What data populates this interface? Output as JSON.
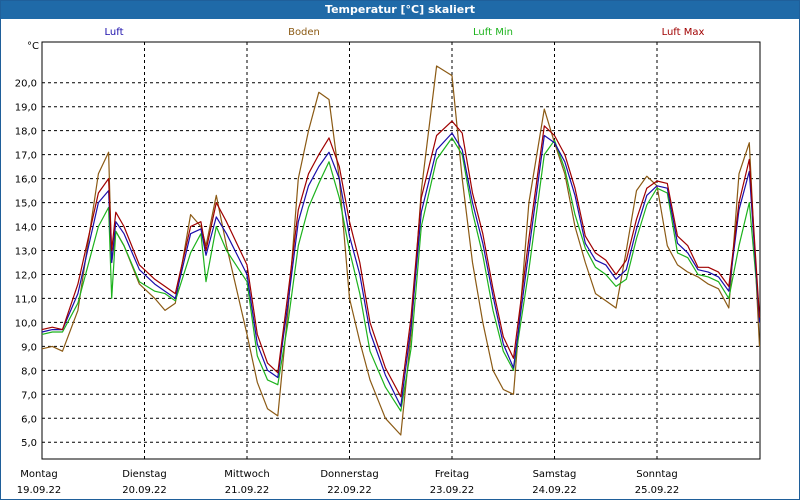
{
  "window": {
    "title": "Temperatur [°C] skaliert"
  },
  "legend": [
    {
      "label": "Luft",
      "color": "#1a0dab"
    },
    {
      "label": "Boden",
      "color": "#8b5a14"
    },
    {
      "label": "Luft Min",
      "color": "#1db31d"
    },
    {
      "label": "Luft Max",
      "color": "#a00000"
    }
  ],
  "chart_data": {
    "type": "line",
    "title": "Temperatur [°C] skaliert",
    "ylabel": "°C",
    "ylim": [
      4.3,
      21.7
    ],
    "yticks": [
      "5,0",
      "6,0",
      "7,0",
      "8,0",
      "9,0",
      "10,0",
      "11,0",
      "12,0",
      "13,0",
      "14,0",
      "15,0",
      "16,0",
      "17,0",
      "18,0",
      "19,0",
      "20,0"
    ],
    "xlim": [
      0,
      7
    ],
    "x_unit": "days since 19.09.22 00:00",
    "days": [
      {
        "name": "Montag",
        "date": "19.09.22"
      },
      {
        "name": "Dienstag",
        "date": "20.09.22"
      },
      {
        "name": "Mittwoch",
        "date": "21.09.22"
      },
      {
        "name": "Donnerstag",
        "date": "22.09.22"
      },
      {
        "name": "Freitag",
        "date": "23.09.22"
      },
      {
        "name": "Samstag",
        "date": "24.09.22"
      },
      {
        "name": "Sonntag",
        "date": "25.09.22"
      }
    ],
    "series": [
      {
        "name": "Luft",
        "color": "#1a0dab",
        "x": [
          0,
          0.1,
          0.2,
          0.35,
          0.55,
          0.65,
          0.68,
          0.72,
          0.8,
          0.95,
          1.1,
          1.2,
          1.3,
          1.45,
          1.55,
          1.6,
          1.7,
          1.8,
          2.0,
          2.1,
          2.2,
          2.3,
          2.4,
          2.5,
          2.6,
          2.7,
          2.8,
          2.9,
          3.0,
          3.1,
          3.2,
          3.35,
          3.5,
          3.6,
          3.7,
          3.85,
          4.0,
          4.1,
          4.2,
          4.3,
          4.4,
          4.5,
          4.6,
          4.75,
          4.9,
          5.0,
          5.1,
          5.2,
          5.3,
          5.4,
          5.5,
          5.6,
          5.7,
          5.8,
          5.9,
          6.0,
          6.1,
          6.2,
          6.3,
          6.4,
          6.5,
          6.6,
          6.7,
          6.8,
          6.9,
          7.0
        ],
        "y": [
          9.6,
          9.7,
          9.7,
          11.2,
          15.0,
          15.5,
          12.5,
          14.2,
          13.7,
          12.2,
          11.6,
          11.3,
          11.0,
          13.7,
          13.9,
          12.8,
          14.4,
          13.7,
          12.0,
          9.1,
          8.0,
          7.7,
          10.8,
          14.2,
          15.7,
          16.5,
          17.1,
          16.0,
          13.6,
          12.0,
          9.6,
          7.8,
          6.5,
          9.8,
          14.6,
          17.2,
          17.9,
          17.2,
          15.0,
          13.3,
          11.1,
          9.1,
          8.1,
          13.0,
          17.8,
          17.5,
          16.7,
          15.3,
          13.3,
          12.6,
          12.4,
          11.8,
          12.2,
          13.9,
          15.3,
          15.7,
          15.6,
          13.3,
          12.9,
          12.2,
          12.1,
          11.9,
          11.3,
          14.7,
          16.3,
          10.0
        ]
      },
      {
        "name": "Boden",
        "color": "#8b5a14",
        "x": [
          0,
          0.1,
          0.2,
          0.35,
          0.55,
          0.65,
          0.68,
          0.72,
          0.8,
          0.95,
          1.1,
          1.2,
          1.3,
          1.45,
          1.55,
          1.6,
          1.7,
          1.8,
          2.0,
          2.1,
          2.2,
          2.3,
          2.4,
          2.5,
          2.6,
          2.7,
          2.8,
          2.9,
          3.0,
          3.1,
          3.2,
          3.35,
          3.5,
          3.6,
          3.7,
          3.85,
          4.0,
          4.1,
          4.2,
          4.3,
          4.4,
          4.5,
          4.6,
          4.75,
          4.9,
          5.0,
          5.1,
          5.2,
          5.3,
          5.4,
          5.5,
          5.6,
          5.7,
          5.8,
          5.9,
          6.0,
          6.1,
          6.2,
          6.3,
          6.4,
          6.5,
          6.6,
          6.7,
          6.8,
          6.9,
          7.0
        ],
        "y": [
          8.9,
          9.0,
          8.8,
          10.5,
          16.2,
          17.1,
          12.5,
          13.8,
          13.2,
          11.6,
          11.0,
          10.5,
          10.8,
          14.5,
          14.0,
          13.2,
          15.3,
          13.2,
          9.5,
          7.5,
          6.4,
          6.1,
          10.5,
          16.0,
          18.0,
          19.6,
          19.3,
          16.0,
          11.0,
          9.2,
          7.6,
          6.0,
          5.3,
          9.5,
          15.5,
          20.7,
          20.3,
          16.0,
          12.5,
          10.0,
          8.0,
          7.2,
          7.0,
          15.0,
          18.9,
          17.5,
          16.2,
          14.0,
          12.5,
          11.2,
          10.9,
          10.6,
          13.0,
          15.5,
          16.1,
          15.7,
          13.2,
          12.4,
          12.1,
          11.9,
          11.6,
          11.4,
          10.6,
          16.2,
          17.5,
          9.0
        ]
      },
      {
        "name": "Luft Min",
        "color": "#1db31d",
        "x": [
          0,
          0.1,
          0.2,
          0.35,
          0.55,
          0.65,
          0.68,
          0.72,
          0.8,
          0.95,
          1.1,
          1.2,
          1.3,
          1.45,
          1.55,
          1.6,
          1.7,
          1.8,
          2.0,
          2.1,
          2.2,
          2.3,
          2.4,
          2.5,
          2.6,
          2.7,
          2.8,
          2.9,
          3.0,
          3.1,
          3.2,
          3.35,
          3.5,
          3.6,
          3.7,
          3.85,
          4.0,
          4.1,
          4.2,
          4.3,
          4.4,
          4.5,
          4.6,
          4.75,
          4.9,
          5.0,
          5.1,
          5.2,
          5.3,
          5.4,
          5.5,
          5.6,
          5.7,
          5.8,
          5.9,
          6.0,
          6.1,
          6.2,
          6.3,
          6.4,
          6.5,
          6.6,
          6.7,
          6.8,
          6.9,
          7.0
        ],
        "y": [
          9.5,
          9.6,
          9.6,
          10.8,
          14.0,
          14.8,
          11.0,
          13.8,
          13.2,
          11.7,
          11.3,
          11.2,
          10.9,
          12.9,
          13.7,
          11.7,
          14.0,
          13.0,
          11.7,
          8.6,
          7.6,
          7.4,
          10.0,
          13.2,
          14.8,
          15.8,
          16.7,
          15.2,
          13.0,
          11.2,
          8.8,
          7.3,
          6.3,
          8.9,
          14.0,
          16.8,
          17.7,
          17.0,
          14.6,
          12.8,
          10.5,
          8.8,
          8.0,
          12.2,
          17.0,
          17.6,
          16.4,
          14.5,
          13.1,
          12.3,
          12.0,
          11.5,
          11.8,
          13.5,
          14.9,
          15.6,
          15.4,
          12.9,
          12.7,
          12.0,
          11.9,
          11.7,
          11.0,
          13.2,
          15.0,
          10.2
        ]
      },
      {
        "name": "Luft Max",
        "color": "#a00000",
        "x": [
          0,
          0.1,
          0.2,
          0.35,
          0.55,
          0.65,
          0.68,
          0.72,
          0.8,
          0.95,
          1.1,
          1.2,
          1.3,
          1.45,
          1.55,
          1.6,
          1.7,
          1.8,
          2.0,
          2.1,
          2.2,
          2.3,
          2.4,
          2.5,
          2.6,
          2.7,
          2.8,
          2.9,
          3.0,
          3.1,
          3.2,
          3.35,
          3.5,
          3.6,
          3.7,
          3.85,
          4.0,
          4.1,
          4.2,
          4.3,
          4.4,
          4.5,
          4.6,
          4.75,
          4.9,
          5.0,
          5.1,
          5.2,
          5.3,
          5.4,
          5.5,
          5.6,
          5.7,
          5.8,
          5.9,
          6.0,
          6.1,
          6.2,
          6.3,
          6.4,
          6.5,
          6.6,
          6.7,
          6.8,
          6.9,
          7.0
        ],
        "y": [
          9.7,
          9.8,
          9.7,
          11.6,
          15.4,
          16.0,
          13.0,
          14.6,
          14.0,
          12.4,
          11.8,
          11.5,
          11.2,
          14.0,
          14.2,
          13.0,
          15.0,
          14.2,
          12.4,
          9.5,
          8.3,
          7.9,
          11.2,
          14.7,
          16.2,
          17.0,
          17.7,
          16.5,
          14.2,
          12.5,
          10.0,
          8.1,
          6.9,
          10.2,
          15.2,
          17.8,
          18.4,
          17.9,
          15.4,
          13.7,
          11.4,
          9.4,
          8.5,
          13.5,
          18.2,
          17.8,
          17.0,
          15.6,
          13.6,
          12.9,
          12.6,
          12.0,
          12.6,
          14.3,
          15.6,
          15.9,
          15.8,
          13.6,
          13.2,
          12.3,
          12.3,
          12.1,
          11.5,
          15.0,
          16.8,
          10.2
        ]
      }
    ]
  }
}
